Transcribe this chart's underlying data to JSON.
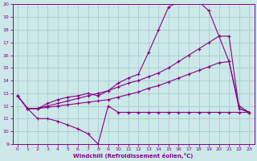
{
  "background_color": "#cce8e8",
  "grid_color": "#aacccc",
  "line_color": "#880088",
  "xlabel": "Windchill (Refroidissement éolien,°C)",
  "xlim": [
    -0.5,
    23.5
  ],
  "ylim": [
    9,
    20
  ],
  "yticks": [
    9,
    10,
    11,
    12,
    13,
    14,
    15,
    16,
    17,
    18,
    19,
    20
  ],
  "xticks": [
    0,
    1,
    2,
    3,
    4,
    5,
    6,
    7,
    8,
    9,
    10,
    11,
    12,
    13,
    14,
    15,
    16,
    17,
    18,
    19,
    20,
    21,
    22,
    23
  ],
  "series1_x": [
    0,
    1,
    2,
    3,
    4,
    5,
    6,
    7,
    8,
    9,
    10,
    11,
    12,
    13,
    14,
    15,
    16,
    17,
    18,
    19,
    20,
    21,
    22,
    23
  ],
  "series1_y": [
    12.8,
    11.8,
    11.0,
    11.0,
    10.8,
    10.5,
    10.2,
    9.8,
    9.0,
    12.0,
    11.5,
    11.5,
    11.5,
    11.5,
    11.5,
    11.5,
    11.5,
    11.5,
    11.5,
    11.5,
    11.5,
    11.5,
    11.5,
    11.5
  ],
  "series2_x": [
    0,
    1,
    2,
    3,
    4,
    5,
    6,
    7,
    8,
    9,
    10,
    11,
    12,
    13,
    14,
    15,
    16,
    17,
    18,
    19,
    20,
    21,
    22,
    23
  ],
  "series2_y": [
    12.8,
    11.8,
    11.8,
    12.2,
    12.5,
    12.7,
    12.8,
    13.0,
    12.8,
    13.2,
    13.8,
    14.2,
    14.5,
    16.2,
    18.0,
    19.8,
    20.2,
    20.2,
    20.2,
    19.5,
    17.5,
    15.5,
    12.0,
    11.5
  ],
  "series3_x": [
    0,
    1,
    2,
    3,
    4,
    5,
    6,
    7,
    8,
    9,
    10,
    11,
    12,
    13,
    14,
    15,
    16,
    17,
    18,
    19,
    20,
    21,
    22,
    23
  ],
  "series3_y": [
    12.8,
    11.8,
    11.8,
    12.0,
    12.2,
    12.4,
    12.6,
    12.8,
    13.0,
    13.2,
    13.5,
    13.8,
    14.0,
    14.3,
    14.6,
    15.0,
    15.5,
    16.0,
    16.5,
    17.0,
    17.5,
    17.5,
    11.8,
    11.5
  ],
  "series4_x": [
    0,
    1,
    2,
    3,
    4,
    5,
    6,
    7,
    8,
    9,
    10,
    11,
    12,
    13,
    14,
    15,
    16,
    17,
    18,
    19,
    20,
    21,
    22,
    23
  ],
  "series4_y": [
    12.8,
    11.8,
    11.8,
    11.9,
    12.0,
    12.1,
    12.2,
    12.3,
    12.4,
    12.5,
    12.7,
    12.9,
    13.1,
    13.4,
    13.6,
    13.9,
    14.2,
    14.5,
    14.8,
    15.1,
    15.4,
    15.5,
    11.8,
    11.5
  ]
}
